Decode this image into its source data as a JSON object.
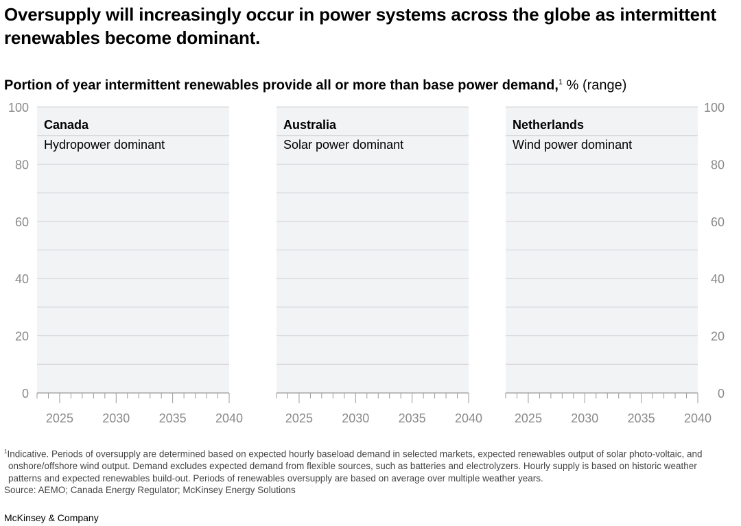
{
  "title": "Oversupply will increasingly occur in power systems across the globe as intermittent renewables become dominant.",
  "subtitle": {
    "bold": "Portion of year intermittent renewables provide all or more than base power demand,",
    "footnote_mark": "1",
    "unit": " % (range)"
  },
  "chart_data": [
    {
      "type": "line",
      "title": "Canada",
      "subtitle": "Hydropower dominant",
      "xlim": [
        2023,
        2040
      ],
      "ylim": [
        0,
        100
      ],
      "x_ticks": [
        2025,
        2030,
        2035,
        2040
      ],
      "y_ticks": [
        0,
        20,
        40,
        60,
        80,
        100
      ],
      "grid": true,
      "series": []
    },
    {
      "type": "line",
      "title": "Australia",
      "subtitle": "Solar power dominant",
      "xlim": [
        2023,
        2040
      ],
      "ylim": [
        0,
        100
      ],
      "x_ticks": [
        2025,
        2030,
        2035,
        2040
      ],
      "y_ticks": [
        0,
        20,
        40,
        60,
        80,
        100
      ],
      "grid": true,
      "series": []
    },
    {
      "type": "line",
      "title": "Netherlands",
      "subtitle": "Wind power dominant",
      "xlim": [
        2023,
        2040
      ],
      "ylim": [
        0,
        100
      ],
      "x_ticks": [
        2025,
        2030,
        2035,
        2040
      ],
      "y_ticks": [
        0,
        20,
        40,
        60,
        80,
        100
      ],
      "grid": true,
      "series": []
    }
  ],
  "colors": {
    "panel_bg": "#f2f3f5",
    "grid": "#cfd1d4",
    "axis_text": "#8a8a8a"
  },
  "footnote": {
    "mark": "1",
    "text": "Indicative. Periods of oversupply are determined based on expected hourly baseload demand in selected markets, expected renewables output of solar photo-voltaic, and onshore/offshore wind output. Demand excludes expected demand from flexible sources, such as batteries and electrolyzers. Hourly supply is based on historic weather patterns and expected renewables build-out. Periods of renewables oversupply are based on average over multiple weather years."
  },
  "source": "Source: AEMO; Canada Energy Regulator; McKinsey Energy Solutions",
  "brand": "McKinsey & Company"
}
